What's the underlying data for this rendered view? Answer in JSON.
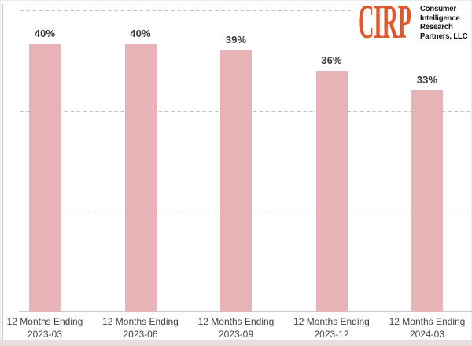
{
  "logo": {
    "brand": "CIRP",
    "brand_color": "#e0572e",
    "subtitle_lines": [
      "Consumer",
      "Intelligence",
      "Research",
      "Partners, LLC"
    ]
  },
  "chart_data": {
    "type": "bar",
    "title": "",
    "categories": [
      [
        "12 Months Ending",
        "2023-03"
      ],
      [
        "12 Months Ending",
        "2023-06"
      ],
      [
        "12 Months Ending",
        "2023-09"
      ],
      [
        "12 Months Ending",
        "2023-12"
      ],
      [
        "12 Months Ending",
        "2024-03"
      ]
    ],
    "values": [
      40,
      40,
      39,
      36,
      33
    ],
    "value_labels": [
      "40%",
      "40%",
      "39%",
      "36%",
      "33%"
    ],
    "ylabel": "",
    "xlabel": "",
    "ylim": [
      0,
      45
    ],
    "gridlines": [
      15,
      30,
      45
    ],
    "gridline_style": "dashed",
    "legend": "none",
    "bar_color": "#e7b3b6"
  }
}
